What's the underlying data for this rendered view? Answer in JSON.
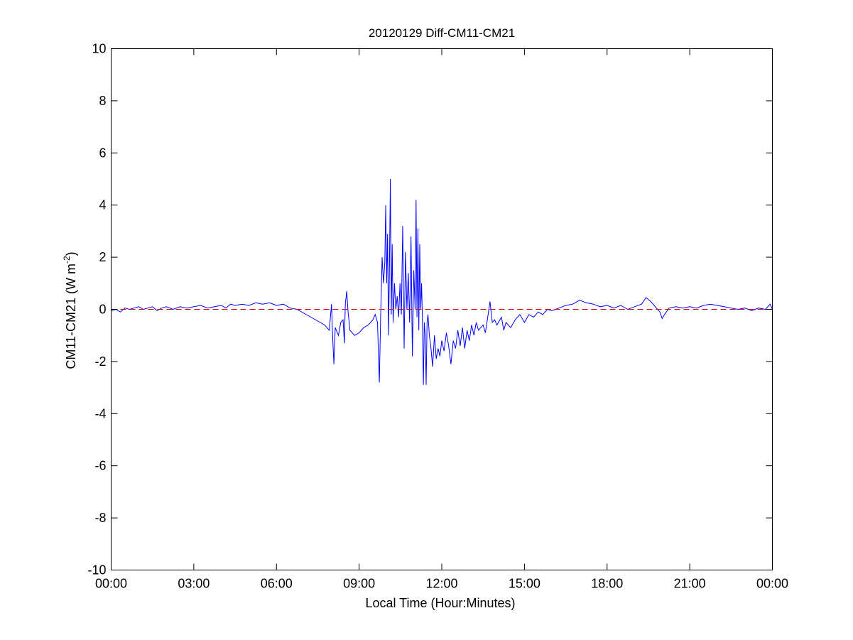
{
  "chart_data": {
    "type": "line",
    "title": "20120129 Diff-CM11-CM21",
    "xlabel": "Local Time (Hour:Minutes)",
    "ylabel": "CM11-CM21 (W m",
    "ylabel_superscript": "-2",
    "ylabel_close": ")",
    "xlim": [
      "00:00",
      "24:00"
    ],
    "ylim": [
      -10,
      10
    ],
    "x_ticks": [
      "00:00",
      "03:00",
      "06:00",
      "09:00",
      "12:00",
      "15:00",
      "18:00",
      "21:00",
      "00:00"
    ],
    "y_ticks": [
      "-10",
      "-8",
      "-6",
      "-4",
      "-2",
      "0",
      "2",
      "4",
      "6",
      "8",
      "10"
    ],
    "grid": false,
    "series": [
      {
        "color": "#0000ff",
        "x": [
          "00:00",
          "00:10",
          "00:20",
          "00:30",
          "00:40",
          "00:50",
          "01:00",
          "01:10",
          "01:20",
          "01:30",
          "01:40",
          "01:50",
          "02:00",
          "02:15",
          "02:30",
          "02:45",
          "03:00",
          "03:15",
          "03:30",
          "03:45",
          "04:00",
          "04:10",
          "04:20",
          "04:30",
          "04:45",
          "05:00",
          "05:15",
          "05:30",
          "05:45",
          "06:00",
          "06:15",
          "06:30",
          "06:45",
          "07:00",
          "07:15",
          "07:30",
          "07:45",
          "07:55",
          "08:00",
          "08:02",
          "08:05",
          "08:08",
          "08:15",
          "08:20",
          "08:25",
          "08:28",
          "08:30",
          "08:33",
          "08:36",
          "08:40",
          "08:50",
          "09:00",
          "09:10",
          "09:20",
          "09:30",
          "09:35",
          "09:40",
          "09:44",
          "09:47",
          "09:50",
          "09:53",
          "09:56",
          "09:58",
          "10:00",
          "10:02",
          "10:04",
          "10:06",
          "10:08",
          "10:10",
          "10:12",
          "10:14",
          "10:17",
          "10:20",
          "10:23",
          "10:26",
          "10:29",
          "10:32",
          "10:35",
          "10:38",
          "10:41",
          "10:44",
          "10:47",
          "10:50",
          "10:53",
          "10:56",
          "10:59",
          "11:02",
          "11:04",
          "11:06",
          "11:08",
          "11:10",
          "11:12",
          "11:14",
          "11:16",
          "11:18",
          "11:20",
          "11:22",
          "11:24",
          "11:26",
          "11:28",
          "11:30",
          "11:33",
          "11:36",
          "11:40",
          "11:44",
          "11:48",
          "11:52",
          "11:56",
          "12:00",
          "12:05",
          "12:10",
          "12:15",
          "12:20",
          "12:25",
          "12:30",
          "12:35",
          "12:40",
          "12:45",
          "12:50",
          "12:55",
          "13:00",
          "13:05",
          "13:10",
          "13:15",
          "13:20",
          "13:25",
          "13:30",
          "13:35",
          "13:40",
          "13:45",
          "13:50",
          "13:55",
          "14:00",
          "14:10",
          "14:15",
          "14:20",
          "14:30",
          "14:40",
          "14:50",
          "15:00",
          "15:10",
          "15:20",
          "15:30",
          "15:40",
          "15:50",
          "16:00",
          "16:15",
          "16:30",
          "16:45",
          "17:00",
          "17:15",
          "17:30",
          "17:45",
          "18:00",
          "18:15",
          "18:30",
          "18:45",
          "19:00",
          "19:15",
          "19:25",
          "19:35",
          "19:45",
          "19:55",
          "20:00",
          "20:05",
          "20:15",
          "20:30",
          "20:45",
          "21:00",
          "21:15",
          "21:30",
          "21:45",
          "22:00",
          "22:15",
          "22:30",
          "22:45",
          "23:00",
          "23:15",
          "23:30",
          "23:45",
          "23:55",
          "24:00"
        ],
        "y": [
          -0.05,
          0.0,
          -0.1,
          0.05,
          0.0,
          0.05,
          0.1,
          0.0,
          0.05,
          0.1,
          -0.05,
          0.05,
          0.1,
          0.0,
          0.1,
          0.05,
          0.1,
          0.15,
          0.05,
          0.1,
          0.15,
          0.05,
          0.2,
          0.15,
          0.2,
          0.15,
          0.25,
          0.2,
          0.25,
          0.15,
          0.2,
          0.05,
          0.0,
          -0.15,
          -0.3,
          -0.45,
          -0.6,
          -0.8,
          0.2,
          -0.9,
          -2.1,
          -0.7,
          -1.0,
          -0.5,
          -0.4,
          -1.3,
          0.2,
          0.7,
          -0.1,
          -0.8,
          -1.0,
          -0.9,
          -0.7,
          -0.6,
          -0.4,
          -0.2,
          -0.5,
          -2.8,
          -0.2,
          2.0,
          1.0,
          1.8,
          4.0,
          1.0,
          2.9,
          -1.0,
          1.5,
          5.0,
          -0.2,
          2.5,
          -0.5,
          1.0,
          0.0,
          0.5,
          -0.3,
          1.0,
          -0.2,
          3.2,
          -1.5,
          2.2,
          0.0,
          1.4,
          -0.5,
          2.8,
          -1.8,
          1.5,
          0.0,
          4.2,
          -0.3,
          3.1,
          -0.8,
          2.5,
          0.0,
          1.0,
          -0.5,
          -2.9,
          -0.5,
          -1.0,
          -2.9,
          -0.5,
          -0.2,
          -1.0,
          -1.4,
          -2.2,
          -1.0,
          -1.9,
          -1.5,
          -1.8,
          -1.2,
          -1.6,
          -0.9,
          -1.4,
          -2.1,
          -1.2,
          -1.5,
          -0.8,
          -1.4,
          -0.7,
          -1.5,
          -0.8,
          -1.2,
          -0.6,
          -1.0,
          -0.5,
          -0.8,
          -0.7,
          -0.6,
          -0.9,
          -0.3,
          0.3,
          -0.5,
          -0.4,
          -0.6,
          -0.3,
          -0.8,
          -0.5,
          -0.7,
          -0.4,
          -0.2,
          -0.5,
          -0.2,
          -0.3,
          -0.1,
          -0.2,
          0.0,
          -0.05,
          0.05,
          0.15,
          0.2,
          0.35,
          0.25,
          0.2,
          0.1,
          0.15,
          0.05,
          0.15,
          0.0,
          0.1,
          0.2,
          0.45,
          0.3,
          0.1,
          -0.1,
          -0.35,
          -0.2,
          0.05,
          0.1,
          0.05,
          0.1,
          0.05,
          0.15,
          0.2,
          0.15,
          0.1,
          0.05,
          0.0,
          0.05,
          -0.05,
          0.05,
          0.0,
          0.2,
          0.0
        ]
      },
      {
        "color": "#cc0000",
        "style": "dashed",
        "x": [
          "00:00",
          "24:00"
        ],
        "y": [
          0,
          0
        ]
      }
    ]
  }
}
